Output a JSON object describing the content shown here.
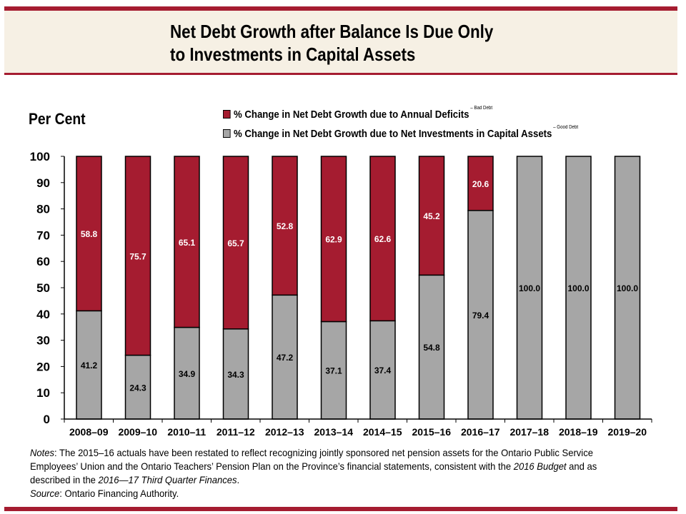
{
  "header": {
    "title_line1": "Net Debt Growth after Balance Is Due Only",
    "title_line2": "to Investments in Capital Assets"
  },
  "chart_data": {
    "type": "bar",
    "stacked": true,
    "title": "Net Debt Growth after Balance Is Due Only to Investments in Capital Assets",
    "ylabel": "Per Cent",
    "xlabel": "",
    "ylim": [
      0,
      100
    ],
    "yticks": [
      0,
      10,
      20,
      30,
      40,
      50,
      60,
      70,
      80,
      90,
      100
    ],
    "grid": false,
    "legend_position": "top",
    "categories": [
      "2008–09",
      "2009–10",
      "2010–11",
      "2011–12",
      "2012–13",
      "2013–14",
      "2014–15",
      "2015–16",
      "2016–17",
      "2017–18",
      "2018–19",
      "2019–20"
    ],
    "series": [
      {
        "name": "% Change in Net Debt Growth due to Net Investments in Capital Assets",
        "annotation": "– Good Debt",
        "color": "#a6a6a6",
        "values": [
          41.2,
          24.3,
          34.9,
          34.3,
          47.2,
          37.1,
          37.4,
          54.8,
          79.4,
          100.0,
          100.0,
          100.0
        ]
      },
      {
        "name": "% Change in Net Debt Growth due to Annual Deficits",
        "annotation": "– Bad Debt",
        "color": "#a51c30",
        "values": [
          58.8,
          75.7,
          65.1,
          65.7,
          52.8,
          62.9,
          62.6,
          45.2,
          20.6,
          0,
          0,
          0
        ]
      }
    ]
  },
  "notes": {
    "label": "Notes",
    "text1": ": The 2015–16 actuals have been restated to reflect recognizing jointly sponsored net pension assets for the Ontario Public Service Employees’ Union and the Ontario Teachers’ Pension Plan on the Province’s financial statements, consistent with the ",
    "italic1": "2016 Budget",
    "text2": " and as described in the ",
    "italic2": "2016—17 Third Quarter Finances",
    "text3": ".",
    "source_label": "Source",
    "source_text": ": Ontario Financing Authority."
  }
}
